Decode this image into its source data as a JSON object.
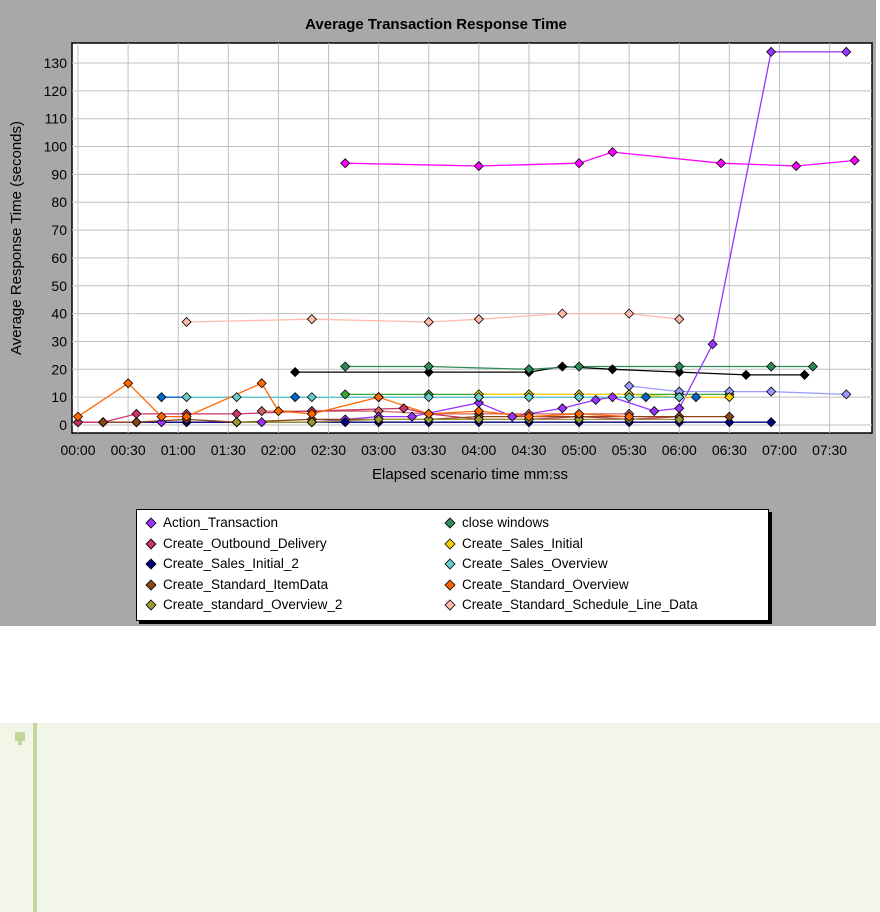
{
  "chart_data": {
    "type": "line",
    "title": "Average Transaction Response Time",
    "xlabel": "Elapsed scenario time mm:ss",
    "ylabel": "Average Response Time (seconds)",
    "xlim": [
      0,
      470
    ],
    "ylim": [
      0,
      136
    ],
    "x_ticks": [
      {
        "t": 0,
        "label": "00:00"
      },
      {
        "t": 30,
        "label": "00:30"
      },
      {
        "t": 60,
        "label": "01:00"
      },
      {
        "t": 90,
        "label": "01:30"
      },
      {
        "t": 120,
        "label": "02:00"
      },
      {
        "t": 150,
        "label": "02:30"
      },
      {
        "t": 180,
        "label": "03:00"
      },
      {
        "t": 210,
        "label": "03:30"
      },
      {
        "t": 240,
        "label": "04:00"
      },
      {
        "t": 270,
        "label": "04:30"
      },
      {
        "t": 300,
        "label": "05:00"
      },
      {
        "t": 330,
        "label": "05:30"
      },
      {
        "t": 360,
        "label": "06:00"
      },
      {
        "t": 390,
        "label": "06:30"
      },
      {
        "t": 420,
        "label": "07:00"
      },
      {
        "t": 450,
        "label": "07:30"
      }
    ],
    "y_ticks": [
      0,
      10,
      20,
      30,
      40,
      50,
      60,
      70,
      80,
      90,
      100,
      110,
      120,
      130
    ],
    "grid": true,
    "legend_position": "bottom",
    "series": [
      {
        "name": "Action_Transaction",
        "color": "#9933ff",
        "points": [
          [
            0,
            1
          ],
          [
            15,
            1
          ],
          [
            35,
            1
          ],
          [
            50,
            1
          ],
          [
            65,
            1
          ],
          [
            95,
            1
          ],
          [
            110,
            1
          ],
          [
            140,
            1
          ],
          [
            160,
            2
          ],
          [
            180,
            3
          ],
          [
            200,
            3
          ],
          [
            240,
            8
          ],
          [
            260,
            3
          ],
          [
            290,
            6
          ],
          [
            310,
            9
          ],
          [
            320,
            10
          ],
          [
            345,
            5
          ],
          [
            360,
            6
          ],
          [
            380,
            29
          ],
          [
            415,
            134
          ],
          [
            460,
            134
          ]
        ]
      },
      {
        "name": "Create_Outbound_Delivery",
        "color": "#cc3366",
        "points": [
          [
            0,
            1
          ],
          [
            15,
            1
          ],
          [
            35,
            4
          ],
          [
            65,
            4
          ],
          [
            95,
            4
          ],
          [
            140,
            5
          ],
          [
            195,
            6
          ],
          [
            210,
            4
          ],
          [
            240,
            2
          ],
          [
            270,
            2
          ],
          [
            300,
            3
          ],
          [
            330,
            2
          ],
          [
            360,
            3
          ]
        ]
      },
      {
        "name": "Create_Sales_Initial_2",
        "color": "#000080",
        "points": [
          [
            35,
            1
          ],
          [
            65,
            1
          ],
          [
            95,
            1
          ],
          [
            140,
            1
          ],
          [
            160,
            1
          ],
          [
            180,
            1
          ],
          [
            210,
            1
          ],
          [
            240,
            1
          ],
          [
            270,
            1
          ],
          [
            300,
            1
          ],
          [
            330,
            1
          ],
          [
            360,
            1
          ],
          [
            390,
            1
          ],
          [
            415,
            1
          ]
        ]
      },
      {
        "name": "Create_Standard_ItemData",
        "color": "#8b4513",
        "points": [
          [
            15,
            1
          ],
          [
            35,
            1
          ],
          [
            65,
            2
          ],
          [
            95,
            1
          ],
          [
            140,
            2
          ],
          [
            180,
            2
          ],
          [
            210,
            2
          ],
          [
            240,
            3
          ],
          [
            270,
            3
          ],
          [
            300,
            3
          ],
          [
            330,
            3
          ],
          [
            360,
            3
          ],
          [
            390,
            3
          ]
        ]
      },
      {
        "name": "Create_standard_Overview_2",
        "color": "#999933",
        "points": [
          [
            95,
            1
          ],
          [
            140,
            1
          ],
          [
            180,
            2
          ],
          [
            210,
            2
          ],
          [
            240,
            2
          ],
          [
            270,
            2
          ],
          [
            300,
            2
          ],
          [
            330,
            2
          ],
          [
            360,
            2
          ]
        ]
      },
      {
        "name": "close windows",
        "color": "#2e8b57",
        "points": [
          [
            160,
            21
          ],
          [
            210,
            21
          ],
          [
            270,
            20
          ],
          [
            300,
            21
          ],
          [
            360,
            21
          ],
          [
            415,
            21
          ],
          [
            440,
            21
          ]
        ]
      },
      {
        "name": "Create_Sales_Initial",
        "color": "#ffcc00",
        "points": [
          [
            240,
            11
          ],
          [
            270,
            11
          ],
          [
            300,
            11
          ],
          [
            330,
            11
          ],
          [
            360,
            10
          ],
          [
            390,
            10
          ]
        ]
      },
      {
        "name": "Create_Sales_Overview",
        "color": "#66cccc",
        "points": [
          [
            65,
            10
          ],
          [
            95,
            10
          ],
          [
            140,
            10
          ],
          [
            180,
            10
          ],
          [
            210,
            10
          ],
          [
            240,
            10
          ],
          [
            270,
            10
          ],
          [
            300,
            10
          ],
          [
            330,
            10
          ],
          [
            360,
            10
          ]
        ]
      },
      {
        "name": "Create_Standard_Overview",
        "color": "#ff6600",
        "points": [
          [
            0,
            3
          ],
          [
            30,
            15
          ],
          [
            50,
            3
          ],
          [
            65,
            3
          ],
          [
            110,
            15
          ],
          [
            120,
            5
          ],
          [
            140,
            4
          ],
          [
            180,
            10
          ],
          [
            210,
            4
          ],
          [
            240,
            5
          ],
          [
            270,
            3
          ],
          [
            300,
            4
          ],
          [
            330,
            3
          ]
        ]
      },
      {
        "name": "Create_Standard_Schedule_Line_Data",
        "color": "#ffbbaa",
        "points": [
          [
            65,
            37
          ],
          [
            140,
            38
          ],
          [
            210,
            37
          ],
          [
            240,
            38
          ],
          [
            290,
            40
          ],
          [
            330,
            40
          ],
          [
            360,
            38
          ]
        ]
      }
    ],
    "extra_lines": [
      {
        "color": "#ff00ff",
        "points": [
          [
            160,
            94
          ],
          [
            240,
            93
          ],
          [
            300,
            94
          ],
          [
            320,
            98
          ],
          [
            385,
            94
          ],
          [
            430,
            93
          ],
          [
            465,
            95
          ]
        ]
      },
      {
        "color": "#000000",
        "points": [
          [
            130,
            19
          ],
          [
            210,
            19
          ],
          [
            270,
            19
          ],
          [
            290,
            21
          ],
          [
            320,
            20
          ],
          [
            360,
            19
          ],
          [
            400,
            18
          ],
          [
            435,
            18
          ]
        ]
      },
      {
        "color": "#0066cc",
        "points": [
          [
            50,
            10
          ],
          [
            130,
            10
          ],
          [
            180,
            10
          ],
          [
            240,
            10
          ],
          [
            300,
            10
          ],
          [
            340,
            10
          ],
          [
            370,
            10
          ]
        ]
      },
      {
        "color": "#33aa33",
        "points": [
          [
            160,
            11
          ],
          [
            210,
            11
          ],
          [
            270,
            11
          ],
          [
            330,
            11
          ],
          [
            360,
            11
          ],
          [
            390,
            11
          ]
        ]
      },
      {
        "color": "#cc6666",
        "points": [
          [
            110,
            5
          ],
          [
            140,
            5
          ],
          [
            180,
            5
          ],
          [
            210,
            4
          ],
          [
            240,
            4
          ],
          [
            270,
            4
          ],
          [
            300,
            4
          ],
          [
            330,
            4
          ]
        ]
      },
      {
        "color": "#9999ff",
        "points": [
          [
            330,
            14
          ],
          [
            360,
            12
          ],
          [
            390,
            12
          ],
          [
            415,
            12
          ],
          [
            460,
            11
          ]
        ]
      }
    ]
  }
}
